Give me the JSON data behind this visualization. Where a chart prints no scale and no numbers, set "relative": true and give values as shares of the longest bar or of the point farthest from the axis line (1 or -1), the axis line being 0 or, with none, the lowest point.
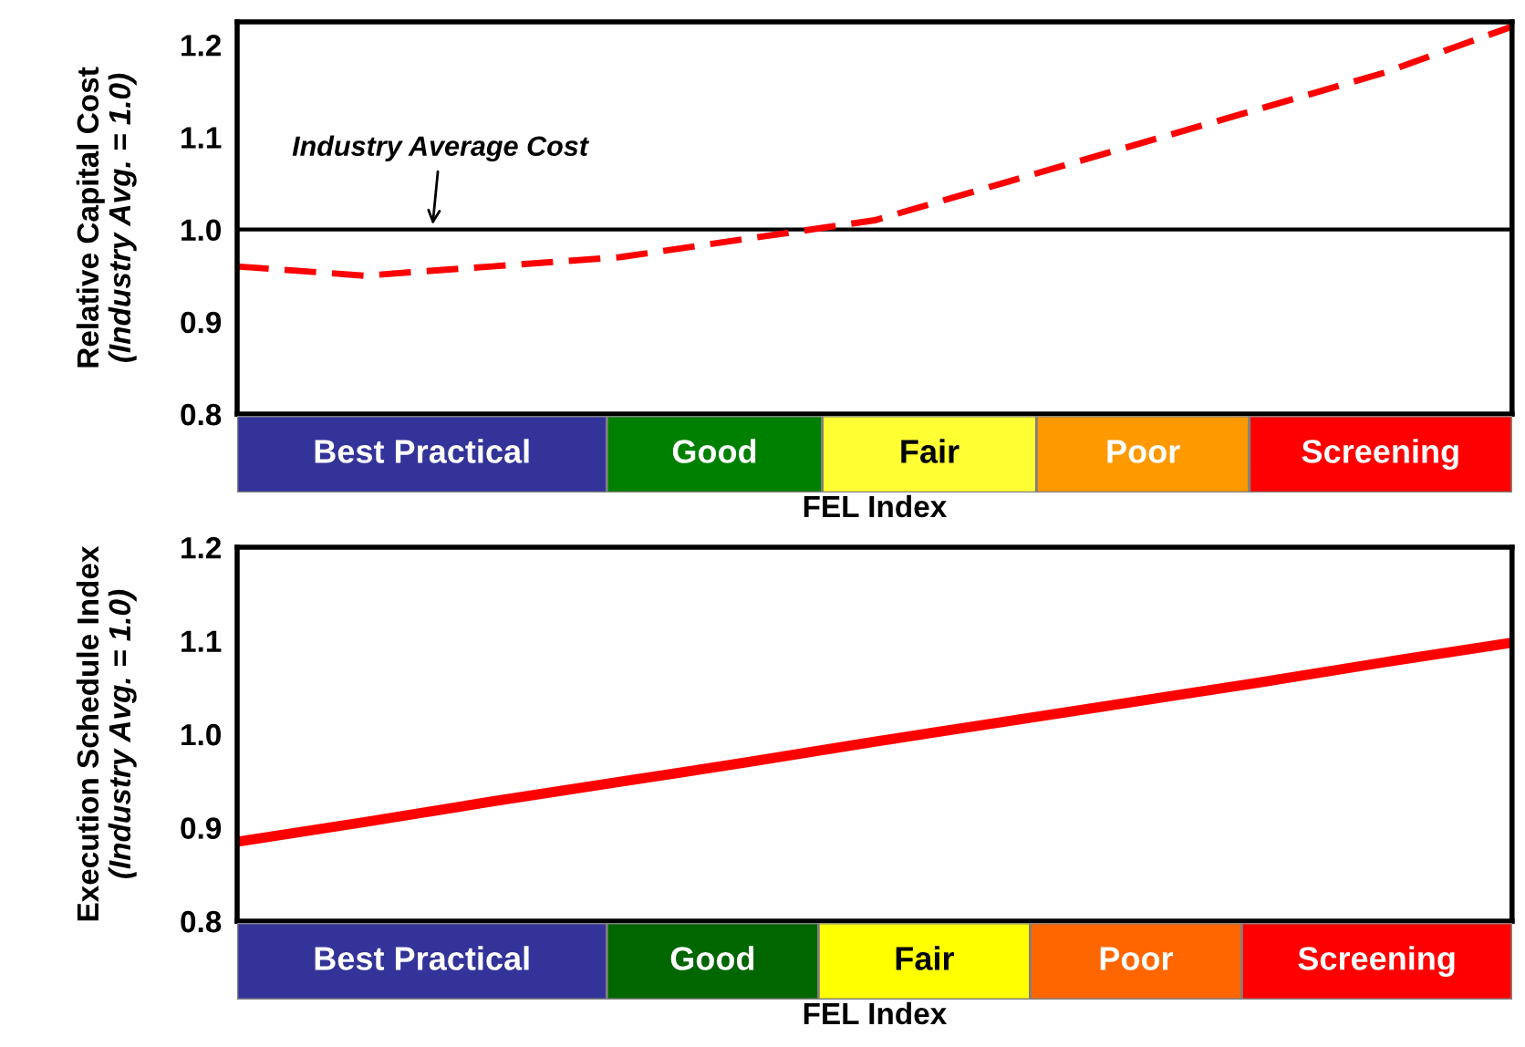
{
  "chart_data": [
    {
      "type": "line",
      "ylabel": "Relative Capital Cost\n(Industry Avg. = 1.0)",
      "categories": [
        null,
        null,
        null,
        null,
        null,
        null,
        null,
        null,
        null,
        null,
        null
      ],
      "series": [
        {
          "color": "#ff0000",
          "values": [
            0.96,
            0.95,
            0.96,
            0.97,
            0.99,
            1.01,
            1.05,
            1.09,
            1.13,
            1.17,
            1.22
          ]
        }
      ],
      "line_style": "dashed",
      "ylim": [
        0.8,
        1.225
      ],
      "yticks": [
        0.8,
        0.9,
        {
          "value": 1.0,
          "label": "1.0"
        },
        1.1,
        1.2
      ],
      "grid": false,
      "ref_lines": [
        {
          "axis": "y",
          "value": 1.0,
          "color": "#000000"
        }
      ],
      "annotations": [
        {
          "text": "Industry Average Cost",
          "y": 1.0
        }
      ]
    },
    {
      "type": "bar",
      "orientation": "horizontal",
      "stacked": true,
      "relative": true,
      "xlabel": "FEL Index",
      "categories": [
        null
      ],
      "series": [
        {
          "name": "Best Practical",
          "color": "#333399",
          "values": [
            0.29
          ]
        },
        {
          "name": "Good",
          "color": "#008000",
          "values": [
            0.169
          ]
        },
        {
          "name": "Fair",
          "color": "#ffff33",
          "values": [
            0.168
          ]
        },
        {
          "name": "Poor",
          "color": "#ff9900",
          "values": [
            0.167
          ]
        },
        {
          "name": "Screening",
          "color": "#ff0000",
          "values": [
            0.206
          ]
        }
      ]
    },
    {
      "type": "line",
      "ylabel": "Execution Schedule Index\n(Industry Avg. = 1.0)",
      "categories": [
        null,
        null,
        null,
        null,
        null,
        null,
        null,
        null,
        null,
        null,
        null
      ],
      "series": [
        {
          "color": "#ff0000",
          "values": [
            0.885,
            0.906,
            0.928,
            0.949,
            0.97,
            0.992,
            1.013,
            1.034,
            1.055,
            1.077,
            1.098
          ]
        }
      ],
      "line_style": "solid",
      "ylim": [
        0.8,
        1.2
      ],
      "yticks": [
        0.8,
        0.9,
        {
          "value": 1.0,
          "label": "1.0"
        },
        1.1,
        1.2
      ],
      "grid": false
    },
    {
      "type": "bar",
      "orientation": "horizontal",
      "stacked": true,
      "relative": true,
      "xlabel": "FEL Index",
      "categories": [
        null
      ],
      "series": [
        {
          "name": "Best Practical",
          "color": "#333399",
          "values": [
            0.29
          ]
        },
        {
          "name": "Good",
          "color": "#006600",
          "values": [
            0.166
          ]
        },
        {
          "name": "Fair",
          "color": "#ffff00",
          "values": [
            0.166
          ]
        },
        {
          "name": "Poor",
          "color": "#ff6600",
          "values": [
            0.166
          ]
        },
        {
          "name": "Screening",
          "color": "#ff0000",
          "values": [
            0.212
          ]
        }
      ]
    }
  ]
}
